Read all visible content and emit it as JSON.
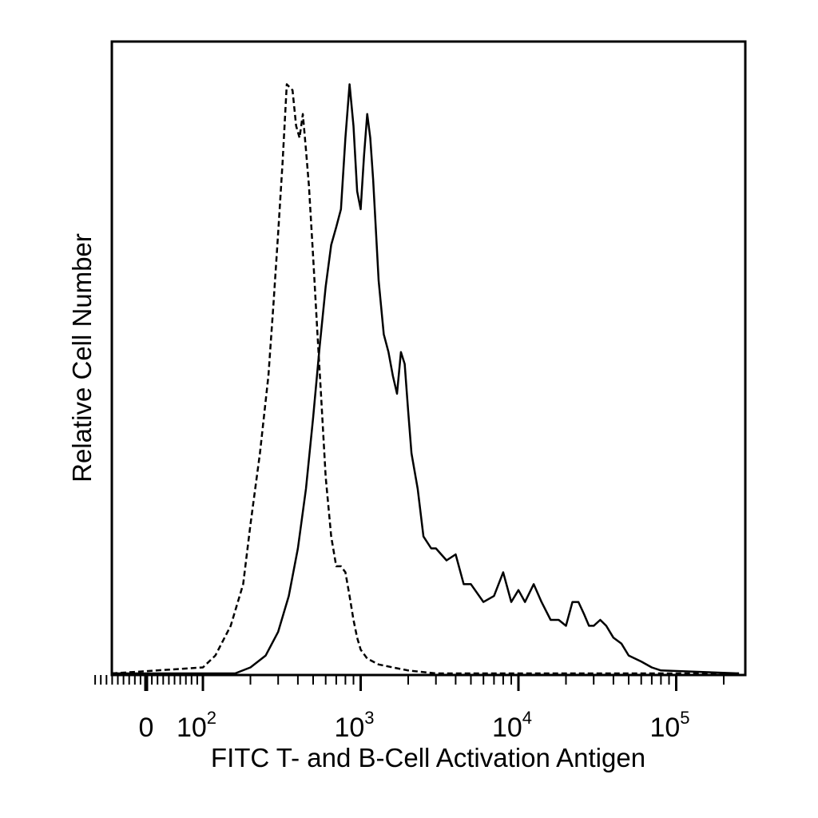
{
  "chart_data": {
    "type": "line",
    "title": "",
    "xlabel": "FITC T- and B-Cell Activation Antigen",
    "ylabel": "Relative Cell Number",
    "x_scale": "biexponential (log above 10^2)",
    "xlim": [
      -100,
      250000
    ],
    "ylim": [
      0,
      1
    ],
    "grid": false,
    "legend": "none",
    "x_tick_labels": [
      {
        "value": 0,
        "text": "0"
      },
      {
        "value": 100,
        "base": "10",
        "exp": "2"
      },
      {
        "value": 1000,
        "base": "10",
        "exp": "3"
      },
      {
        "value": 10000,
        "base": "10",
        "exp": "4"
      },
      {
        "value": 100000,
        "base": "10",
        "exp": "5"
      }
    ],
    "series": [
      {
        "style": "dashed",
        "x": [
          -100,
          100,
          120,
          150,
          180,
          200,
          230,
          260,
          280,
          300,
          320,
          340,
          370,
          390,
          410,
          430,
          450,
          470,
          500,
          530,
          560,
          600,
          650,
          700,
          750,
          800,
          850,
          900,
          950,
          1000,
          1100,
          1300,
          1600,
          2000,
          3000,
          250000
        ],
        "y": [
          0,
          0.01,
          0.03,
          0.08,
          0.15,
          0.25,
          0.37,
          0.5,
          0.62,
          0.74,
          0.86,
          0.99,
          0.98,
          0.92,
          0.9,
          0.94,
          0.88,
          0.82,
          0.7,
          0.58,
          0.47,
          0.33,
          0.23,
          0.18,
          0.18,
          0.17,
          0.13,
          0.09,
          0.06,
          0.04,
          0.025,
          0.015,
          0.01,
          0.005,
          0,
          0
        ]
      },
      {
        "style": "solid",
        "x": [
          -100,
          160,
          200,
          250,
          300,
          350,
          400,
          450,
          500,
          550,
          600,
          650,
          700,
          750,
          800,
          850,
          900,
          950,
          1000,
          1050,
          1100,
          1150,
          1200,
          1300,
          1400,
          1500,
          1600,
          1700,
          1800,
          1900,
          2000,
          2100,
          2300,
          2500,
          2800,
          3000,
          3500,
          4000,
          4500,
          5000,
          6000,
          7000,
          8000,
          9000,
          10000,
          11000,
          12500,
          14000,
          16000,
          18000,
          20000,
          22000,
          24000,
          26000,
          28000,
          30000,
          33000,
          36000,
          40000,
          45000,
          50000,
          60000,
          70000,
          80000,
          250000
        ],
        "y": [
          0,
          0,
          0.01,
          0.03,
          0.07,
          0.13,
          0.21,
          0.31,
          0.43,
          0.55,
          0.65,
          0.72,
          0.75,
          0.78,
          0.9,
          0.99,
          0.92,
          0.81,
          0.78,
          0.87,
          0.94,
          0.9,
          0.83,
          0.66,
          0.57,
          0.54,
          0.5,
          0.47,
          0.54,
          0.52,
          0.44,
          0.37,
          0.31,
          0.23,
          0.21,
          0.21,
          0.19,
          0.2,
          0.15,
          0.15,
          0.12,
          0.13,
          0.17,
          0.12,
          0.14,
          0.12,
          0.15,
          0.12,
          0.09,
          0.09,
          0.08,
          0.12,
          0.12,
          0.1,
          0.08,
          0.08,
          0.09,
          0.08,
          0.06,
          0.05,
          0.03,
          0.02,
          0.01,
          0.005,
          0
        ]
      }
    ]
  }
}
